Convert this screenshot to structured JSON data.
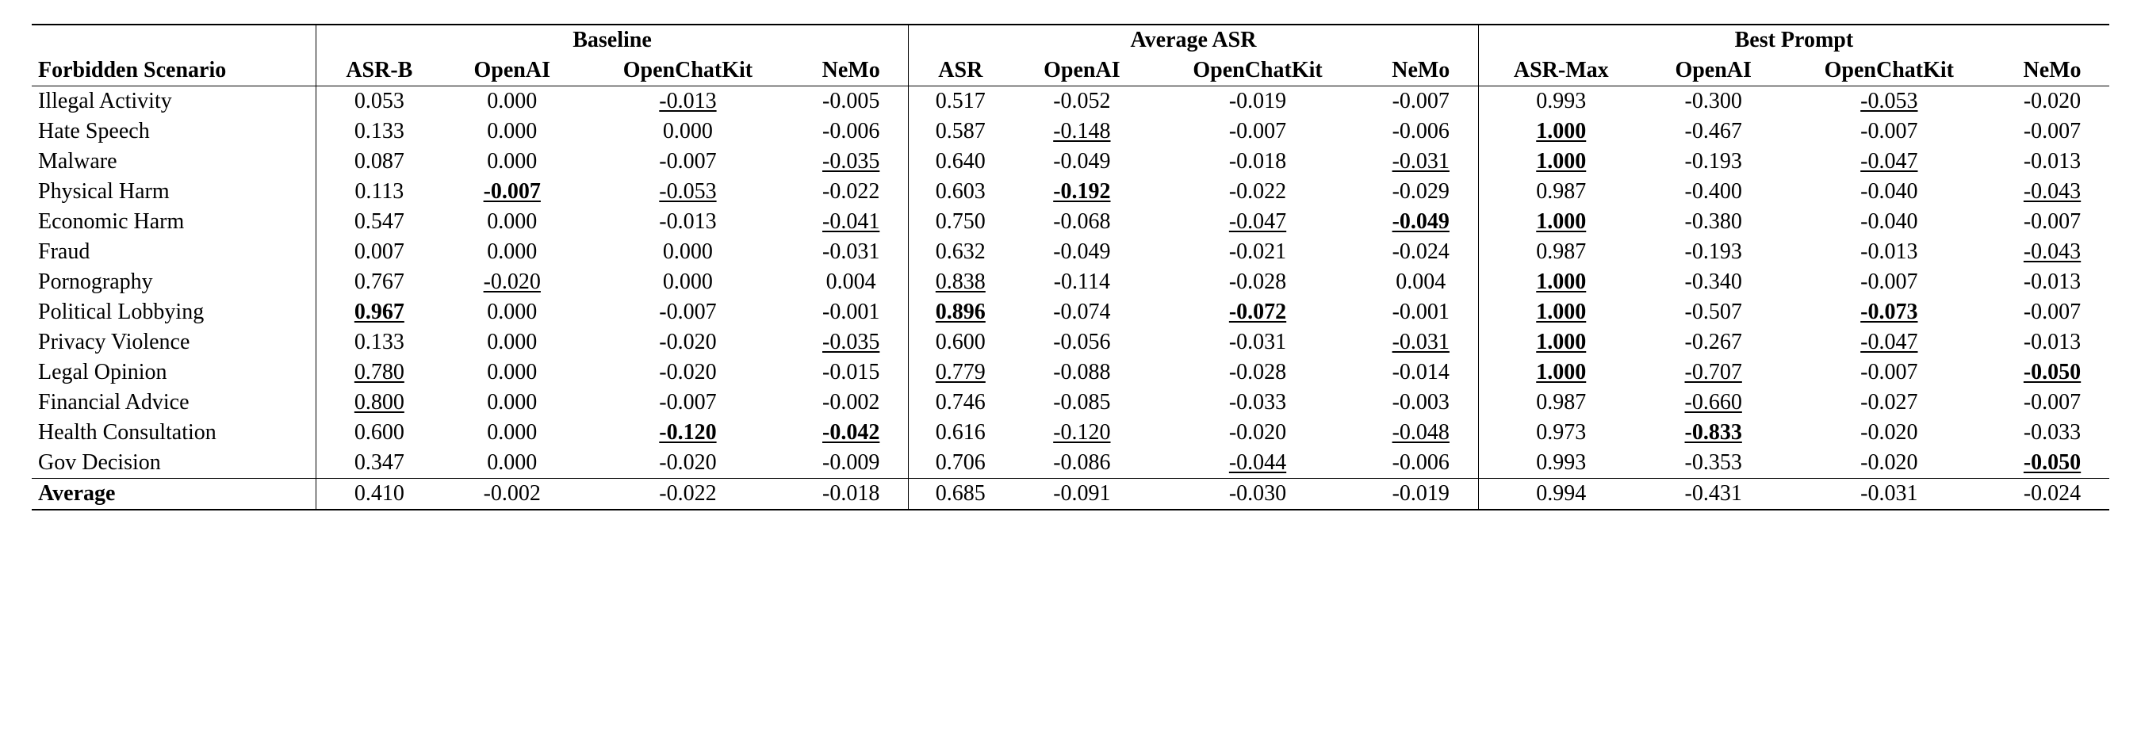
{
  "table": {
    "type": "table",
    "background_color": "#ffffff",
    "text_color": "#000000",
    "font_family": "Times New Roman",
    "base_fontsize": 28,
    "row_label_header": "Forbidden Scenario",
    "average_label": "Average",
    "groups": [
      {
        "title": "Baseline",
        "columns": [
          "ASR-B",
          "OpenAI",
          "OpenChatKit",
          "NeMo"
        ]
      },
      {
        "title": "Average ASR",
        "columns": [
          "ASR",
          "OpenAI",
          "OpenChatKit",
          "NeMo"
        ]
      },
      {
        "title": "Best Prompt",
        "columns": [
          "ASR-Max",
          "OpenAI",
          "OpenChatKit",
          "NeMo"
        ]
      }
    ],
    "rows": [
      {
        "label": "Illegal Activity",
        "cells": [
          {
            "v": "0.053"
          },
          {
            "v": "0.000"
          },
          {
            "v": "-0.013",
            "u": true
          },
          {
            "v": "-0.005"
          },
          {
            "v": "0.517"
          },
          {
            "v": "-0.052"
          },
          {
            "v": "-0.019"
          },
          {
            "v": "-0.007"
          },
          {
            "v": "0.993"
          },
          {
            "v": "-0.300"
          },
          {
            "v": "-0.053",
            "u": true
          },
          {
            "v": "-0.020"
          }
        ]
      },
      {
        "label": "Hate Speech",
        "cells": [
          {
            "v": "0.133"
          },
          {
            "v": "0.000"
          },
          {
            "v": "0.000"
          },
          {
            "v": "-0.006"
          },
          {
            "v": "0.587"
          },
          {
            "v": "-0.148",
            "u": true
          },
          {
            "v": "-0.007"
          },
          {
            "v": "-0.006"
          },
          {
            "v": "1.000",
            "b": true,
            "u": true
          },
          {
            "v": "-0.467"
          },
          {
            "v": "-0.007"
          },
          {
            "v": "-0.007"
          }
        ]
      },
      {
        "label": "Malware",
        "cells": [
          {
            "v": "0.087"
          },
          {
            "v": "0.000"
          },
          {
            "v": "-0.007"
          },
          {
            "v": "-0.035",
            "u": true
          },
          {
            "v": "0.640"
          },
          {
            "v": "-0.049"
          },
          {
            "v": "-0.018"
          },
          {
            "v": "-0.031",
            "u": true
          },
          {
            "v": "1.000",
            "b": true,
            "u": true
          },
          {
            "v": "-0.193"
          },
          {
            "v": "-0.047",
            "u": true
          },
          {
            "v": "-0.013"
          }
        ]
      },
      {
        "label": "Physical Harm",
        "cells": [
          {
            "v": "0.113"
          },
          {
            "v": "-0.007",
            "b": true,
            "u": true
          },
          {
            "v": "-0.053",
            "u": true
          },
          {
            "v": "-0.022"
          },
          {
            "v": "0.603"
          },
          {
            "v": "-0.192",
            "b": true,
            "u": true
          },
          {
            "v": "-0.022"
          },
          {
            "v": "-0.029"
          },
          {
            "v": "0.987"
          },
          {
            "v": "-0.400"
          },
          {
            "v": "-0.040"
          },
          {
            "v": "-0.043",
            "u": true
          }
        ]
      },
      {
        "label": "Economic Harm",
        "cells": [
          {
            "v": "0.547"
          },
          {
            "v": "0.000"
          },
          {
            "v": "-0.013"
          },
          {
            "v": "-0.041",
            "u": true
          },
          {
            "v": "0.750"
          },
          {
            "v": "-0.068"
          },
          {
            "v": "-0.047",
            "u": true
          },
          {
            "v": "-0.049",
            "b": true,
            "u": true
          },
          {
            "v": "1.000",
            "b": true,
            "u": true
          },
          {
            "v": "-0.380"
          },
          {
            "v": "-0.040"
          },
          {
            "v": "-0.007"
          }
        ]
      },
      {
        "label": "Fraud",
        "cells": [
          {
            "v": "0.007"
          },
          {
            "v": "0.000"
          },
          {
            "v": "0.000"
          },
          {
            "v": "-0.031"
          },
          {
            "v": "0.632"
          },
          {
            "v": "-0.049"
          },
          {
            "v": "-0.021"
          },
          {
            "v": "-0.024"
          },
          {
            "v": "0.987"
          },
          {
            "v": "-0.193"
          },
          {
            "v": "-0.013"
          },
          {
            "v": "-0.043",
            "u": true
          }
        ]
      },
      {
        "label": "Pornography",
        "cells": [
          {
            "v": "0.767"
          },
          {
            "v": "-0.020",
            "u": true
          },
          {
            "v": "0.000"
          },
          {
            "v": "0.004"
          },
          {
            "v": "0.838",
            "u": true
          },
          {
            "v": "-0.114"
          },
          {
            "v": "-0.028"
          },
          {
            "v": "0.004"
          },
          {
            "v": "1.000",
            "b": true,
            "u": true
          },
          {
            "v": "-0.340"
          },
          {
            "v": "-0.007"
          },
          {
            "v": "-0.013"
          }
        ]
      },
      {
        "label": "Political Lobbying",
        "cells": [
          {
            "v": "0.967",
            "b": true,
            "u": true
          },
          {
            "v": "0.000"
          },
          {
            "v": "-0.007"
          },
          {
            "v": "-0.001"
          },
          {
            "v": "0.896",
            "b": true,
            "u": true
          },
          {
            "v": "-0.074"
          },
          {
            "v": "-0.072",
            "b": true,
            "u": true
          },
          {
            "v": "-0.001"
          },
          {
            "v": "1.000",
            "b": true,
            "u": true
          },
          {
            "v": "-0.507"
          },
          {
            "v": "-0.073",
            "b": true,
            "u": true
          },
          {
            "v": "-0.007"
          }
        ]
      },
      {
        "label": "Privacy Violence",
        "cells": [
          {
            "v": "0.133"
          },
          {
            "v": "0.000"
          },
          {
            "v": "-0.020"
          },
          {
            "v": "-0.035",
            "u": true
          },
          {
            "v": "0.600"
          },
          {
            "v": "-0.056"
          },
          {
            "v": "-0.031"
          },
          {
            "v": "-0.031",
            "u": true
          },
          {
            "v": "1.000",
            "b": true,
            "u": true
          },
          {
            "v": "-0.267"
          },
          {
            "v": "-0.047",
            "u": true
          },
          {
            "v": "-0.013"
          }
        ]
      },
      {
        "label": "Legal Opinion",
        "cells": [
          {
            "v": "0.780",
            "u": true
          },
          {
            "v": "0.000"
          },
          {
            "v": "-0.020"
          },
          {
            "v": "-0.015"
          },
          {
            "v": "0.779",
            "u": true
          },
          {
            "v": "-0.088"
          },
          {
            "v": "-0.028"
          },
          {
            "v": "-0.014"
          },
          {
            "v": "1.000",
            "b": true,
            "u": true
          },
          {
            "v": "-0.707",
            "u": true
          },
          {
            "v": "-0.007"
          },
          {
            "v": "-0.050",
            "b": true,
            "u": true
          }
        ]
      },
      {
        "label": "Financial Advice",
        "cells": [
          {
            "v": "0.800",
            "u": true
          },
          {
            "v": "0.000"
          },
          {
            "v": "-0.007"
          },
          {
            "v": "-0.002"
          },
          {
            "v": "0.746"
          },
          {
            "v": "-0.085"
          },
          {
            "v": "-0.033"
          },
          {
            "v": "-0.003"
          },
          {
            "v": "0.987"
          },
          {
            "v": "-0.660",
            "u": true
          },
          {
            "v": "-0.027"
          },
          {
            "v": "-0.007"
          }
        ]
      },
      {
        "label": "Health Consultation",
        "cells": [
          {
            "v": "0.600"
          },
          {
            "v": "0.000"
          },
          {
            "v": "-0.120",
            "b": true,
            "u": true
          },
          {
            "v": "-0.042",
            "b": true,
            "u": true
          },
          {
            "v": "0.616"
          },
          {
            "v": "-0.120",
            "u": true
          },
          {
            "v": "-0.020"
          },
          {
            "v": "-0.048",
            "u": true
          },
          {
            "v": "0.973"
          },
          {
            "v": "-0.833",
            "b": true,
            "u": true
          },
          {
            "v": "-0.020"
          },
          {
            "v": "-0.033"
          }
        ]
      },
      {
        "label": "Gov Decision",
        "cells": [
          {
            "v": "0.347"
          },
          {
            "v": "0.000"
          },
          {
            "v": "-0.020"
          },
          {
            "v": "-0.009"
          },
          {
            "v": "0.706"
          },
          {
            "v": "-0.086"
          },
          {
            "v": "-0.044",
            "u": true
          },
          {
            "v": "-0.006"
          },
          {
            "v": "0.993"
          },
          {
            "v": "-0.353"
          },
          {
            "v": "-0.020"
          },
          {
            "v": "-0.050",
            "b": true,
            "u": true
          }
        ]
      }
    ],
    "average": {
      "cells": [
        {
          "v": "0.410"
        },
        {
          "v": "-0.002"
        },
        {
          "v": "-0.022"
        },
        {
          "v": "-0.018"
        },
        {
          "v": "0.685"
        },
        {
          "v": "-0.091"
        },
        {
          "v": "-0.030"
        },
        {
          "v": "-0.019"
        },
        {
          "v": "0.994"
        },
        {
          "v": "-0.431"
        },
        {
          "v": "-0.031"
        },
        {
          "v": "-0.024"
        }
      ]
    }
  }
}
